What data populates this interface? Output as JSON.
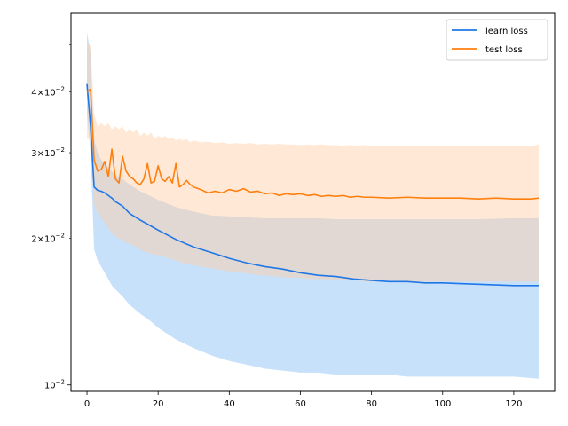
{
  "chart_data": {
    "type": "line",
    "title": "",
    "xlabel": "",
    "ylabel": "",
    "xlim": [
      -4.5,
      131.5
    ],
    "ylim": [
      0.0097,
      0.058
    ],
    "yscale": "log",
    "grid": false,
    "legend_position": "top-right",
    "x_ticks": [
      0,
      20,
      40,
      60,
      80,
      100,
      120
    ],
    "x_tick_labels": [
      "0",
      "20",
      "40",
      "60",
      "80",
      "100",
      "120"
    ],
    "y_major_ticks": [
      0.01
    ],
    "y_major_labels": [
      {
        "mant": "10",
        "exp": "−2"
      }
    ],
    "y_minor_ticks": [
      0.02,
      0.03,
      0.04,
      0.05
    ],
    "y_minor_labels": [
      {
        "mant": "2×10",
        "exp": "−2"
      },
      {
        "mant": "3×10",
        "exp": "−2"
      },
      {
        "mant": "4×10",
        "exp": "−2"
      },
      {
        "mant": ""
      }
    ],
    "series": [
      {
        "name": "learn loss",
        "color": "#1f77e6",
        "band_color": "#86bdf4",
        "x": [
          0,
          1,
          2,
          3,
          4,
          5,
          6,
          7,
          8,
          10,
          12,
          15,
          18,
          20,
          25,
          30,
          35,
          40,
          45,
          50,
          55,
          60,
          65,
          70,
          75,
          80,
          85,
          90,
          95,
          100,
          110,
          120,
          127
        ],
        "values": [
          0.0415,
          0.034,
          0.0255,
          0.0251,
          0.025,
          0.0248,
          0.0245,
          0.0242,
          0.0238,
          0.0233,
          0.0225,
          0.0218,
          0.0212,
          0.0208,
          0.0199,
          0.0192,
          0.0187,
          0.0182,
          0.0178,
          0.0175,
          0.0173,
          0.017,
          0.0168,
          0.0167,
          0.0165,
          0.0164,
          0.0163,
          0.0163,
          0.0162,
          0.0162,
          0.0161,
          0.016,
          0.016
        ],
        "lower": [
          0.036,
          0.03,
          0.019,
          0.018,
          0.0175,
          0.017,
          0.0165,
          0.016,
          0.0157,
          0.0152,
          0.0146,
          0.014,
          0.0135,
          0.0131,
          0.0124,
          0.0119,
          0.0115,
          0.0112,
          0.011,
          0.0108,
          0.0107,
          0.0106,
          0.0106,
          0.0105,
          0.0105,
          0.0105,
          0.0105,
          0.0104,
          0.0104,
          0.0104,
          0.0104,
          0.0104,
          0.0103
        ],
        "upper": [
          0.053,
          0.048,
          0.032,
          0.03,
          0.029,
          0.0285,
          0.028,
          0.0275,
          0.027,
          0.0265,
          0.0258,
          0.025,
          0.0244,
          0.024,
          0.0232,
          0.0227,
          0.0223,
          0.0222,
          0.0221,
          0.022,
          0.022,
          0.022,
          0.022,
          0.0219,
          0.0219,
          0.0219,
          0.0219,
          0.0219,
          0.0219,
          0.0219,
          0.0219,
          0.022,
          0.022
        ]
      },
      {
        "name": "test loss",
        "color": "#ff7f0e",
        "band_color": "#ffcfa4",
        "x": [
          0,
          1,
          2,
          3,
          4,
          5,
          6,
          7,
          8,
          9,
          10,
          11,
          12,
          13,
          14,
          15,
          16,
          17,
          18,
          19,
          20,
          21,
          22,
          23,
          24,
          25,
          26,
          27,
          28,
          29,
          30,
          32,
          34,
          36,
          38,
          40,
          42,
          44,
          46,
          48,
          50,
          52,
          54,
          56,
          58,
          60,
          62,
          64,
          66,
          68,
          70,
          72,
          74,
          76,
          78,
          80,
          85,
          90,
          95,
          100,
          105,
          110,
          115,
          120,
          125,
          127
        ],
        "values": [
          0.04,
          0.0405,
          0.029,
          0.0275,
          0.0277,
          0.0288,
          0.0268,
          0.0305,
          0.0265,
          0.026,
          0.0295,
          0.0275,
          0.0268,
          0.0265,
          0.026,
          0.0258,
          0.0265,
          0.0285,
          0.026,
          0.0262,
          0.0282,
          0.0265,
          0.0262,
          0.0268,
          0.026,
          0.0285,
          0.0255,
          0.0258,
          0.0263,
          0.0258,
          0.0255,
          0.0252,
          0.0248,
          0.025,
          0.0248,
          0.0252,
          0.025,
          0.0253,
          0.0249,
          0.025,
          0.0247,
          0.0248,
          0.0245,
          0.0247,
          0.0246,
          0.0247,
          0.0245,
          0.0246,
          0.0244,
          0.0245,
          0.0244,
          0.0245,
          0.0243,
          0.0244,
          0.0243,
          0.0243,
          0.0242,
          0.0243,
          0.0242,
          0.0242,
          0.0242,
          0.0241,
          0.0242,
          0.0241,
          0.0241,
          0.0242
        ],
        "lower": [
          0.032,
          0.032,
          0.0235,
          0.0225,
          0.022,
          0.0215,
          0.021,
          0.0205,
          0.0202,
          0.02,
          0.0198,
          0.0196,
          0.0195,
          0.0193,
          0.0192,
          0.019,
          0.0188,
          0.0187,
          0.0186,
          0.0185,
          0.0185,
          0.0184,
          0.0183,
          0.0182,
          0.0181,
          0.018,
          0.0179,
          0.0178,
          0.0177,
          0.0177,
          0.0176,
          0.0175,
          0.0174,
          0.0173,
          0.0172,
          0.0171,
          0.017,
          0.017,
          0.0169,
          0.0168,
          0.0168,
          0.0167,
          0.0167,
          0.0166,
          0.0166,
          0.0166,
          0.0165,
          0.0165,
          0.0165,
          0.0164,
          0.0164,
          0.0164,
          0.0164,
          0.0164,
          0.0163,
          0.0163,
          0.0163,
          0.0163,
          0.0163,
          0.0163,
          0.0163,
          0.0163,
          0.0163,
          0.0163,
          0.0163,
          0.0163
        ],
        "upper": [
          0.05,
          0.05,
          0.036,
          0.034,
          0.0345,
          0.034,
          0.0345,
          0.0335,
          0.034,
          0.0335,
          0.034,
          0.033,
          0.0335,
          0.033,
          0.0335,
          0.0325,
          0.033,
          0.0325,
          0.033,
          0.032,
          0.0325,
          0.0322,
          0.0325,
          0.032,
          0.0322,
          0.0318,
          0.032,
          0.0318,
          0.032,
          0.0315,
          0.0318,
          0.0315,
          0.0316,
          0.0314,
          0.0315,
          0.0313,
          0.0314,
          0.0313,
          0.0314,
          0.0312,
          0.0313,
          0.0312,
          0.0313,
          0.0312,
          0.0312,
          0.0311,
          0.0312,
          0.0311,
          0.0312,
          0.0311,
          0.0311,
          0.031,
          0.0311,
          0.031,
          0.0311,
          0.031,
          0.031,
          0.031,
          0.031,
          0.031,
          0.031,
          0.031,
          0.031,
          0.031,
          0.031,
          0.0312
        ]
      }
    ]
  }
}
